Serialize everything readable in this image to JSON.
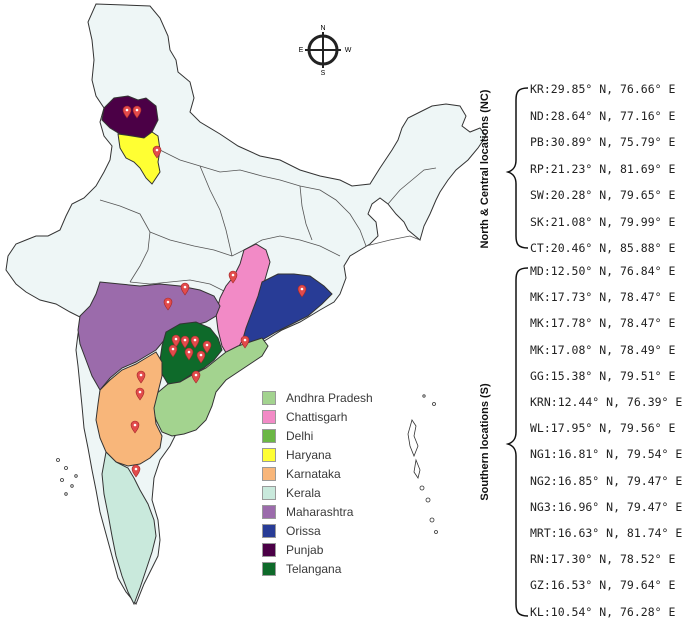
{
  "compass": {
    "n": "N",
    "s": "S",
    "e": "E",
    "w": "W"
  },
  "legend": [
    {
      "label": "Andhra Pradesh",
      "color": "#a3d38f"
    },
    {
      "label": "Chattisgarh",
      "color": "#f28ac6"
    },
    {
      "label": "Delhi",
      "color": "#6bb745"
    },
    {
      "label": "Haryana",
      "color": "#ffff33"
    },
    {
      "label": "Karnataka",
      "color": "#f8b67a"
    },
    {
      "label": "Kerala",
      "color": "#c9e9dc"
    },
    {
      "label": "Maharashtra",
      "color": "#9b6bab"
    },
    {
      "label": "Orissa",
      "color": "#283c96"
    },
    {
      "label": "Punjab",
      "color": "#4b0046"
    },
    {
      "label": "Telangana",
      "color": "#0e6a2a"
    }
  ],
  "groups": {
    "nc_label": "North & Central locations (NC)",
    "s_label": "Southern locations (S)"
  },
  "nc_locations": [
    "KR:29.85° N, 76.66° E",
    "ND:28.64° N, 77.16° E",
    "PB:30.89° N, 75.79° E",
    "RP:21.23° N, 81.69° E",
    "SW:20.28° N, 79.65° E",
    "SK:21.08° N, 79.99° E",
    "CT:20.46° N, 85.88° E"
  ],
  "s_locations": [
    "MD:12.50° N, 76.84° E",
    "MK:17.73° N, 78.47° E",
    "MK:17.78° N, 78.47° E",
    "MK:17.08° N, 78.49° E",
    "GG:15.38° N, 79.51° E",
    "KRN:12.44° N, 76.39° E",
    "WL:17.95° N, 79.56° E",
    "NG1:16.81° N, 79.54° E",
    "NG2:16.85° N, 79.47° E",
    "NG3:16.96° N, 79.47° E",
    "MRT:16.63° N, 81.74° E",
    "RN:17.30° N, 78.52° E",
    "GZ:16.53° N, 79.64° E",
    "KL:10.54° N, 76.28° E"
  ],
  "colors": {
    "base_fill": "#eef6f6",
    "outline": "#333333",
    "marker": "#e24b4b"
  }
}
